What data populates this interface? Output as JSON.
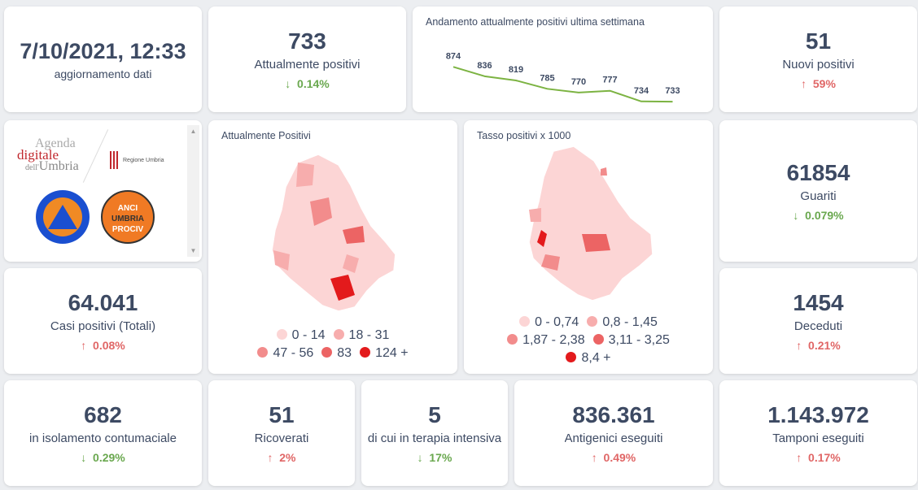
{
  "update": {
    "datetime": "7/10/2021, 12:33",
    "label": "aggiornamento dati"
  },
  "attualmente_positivi": {
    "value": "733",
    "label": "Attualmente positivi",
    "delta": "0.14%",
    "dir": "down"
  },
  "trend": {
    "title": "Andamento attualmente positivi ultima settimana",
    "values": [
      874,
      836,
      819,
      785,
      770,
      777,
      734,
      733
    ],
    "color": "#7cb342"
  },
  "nuovi_positivi": {
    "value": "51",
    "label": "Nuovi positivi",
    "delta": "59%",
    "dir": "up"
  },
  "logos": {
    "agenda": "Agenda digitale dell'Umbria",
    "regione": "Regione Umbria",
    "protezione": "Protezione Civile",
    "anci": "ANCI UMBRIA PROCIV"
  },
  "map1": {
    "title": "Attualmente Positivi",
    "legend": [
      {
        "label": "0 - 14",
        "color": "#fcd5d5"
      },
      {
        "label": "18 - 31",
        "color": "#f7adad"
      },
      {
        "label": "47 - 56",
        "color": "#f28c8c"
      },
      {
        "label": "83",
        "color": "#ec6464"
      },
      {
        "label": "124 +",
        "color": "#e31a1c"
      }
    ]
  },
  "map2": {
    "title": "Tasso positivi x 1000",
    "legend": [
      {
        "label": "0 - 0,74",
        "color": "#fcd5d5"
      },
      {
        "label": "0,8 - 1,45",
        "color": "#f7adad"
      },
      {
        "label": "1,87 - 2,38",
        "color": "#f28c8c"
      },
      {
        "label": "3,11 - 3,25",
        "color": "#ec6464"
      },
      {
        "label": "8,4 +",
        "color": "#e31a1c"
      }
    ]
  },
  "guariti": {
    "value": "61854",
    "label": "Guariti",
    "delta": "0.079%",
    "dir": "down"
  },
  "casi_totali": {
    "value": "64.041",
    "label": "Casi positivi (Totali)",
    "delta": "0.08%",
    "dir": "up"
  },
  "deceduti": {
    "value": "1454",
    "label": "Deceduti",
    "delta": "0.21%",
    "dir": "up"
  },
  "isolamento": {
    "value": "682",
    "label": "in isolamento contumaciale",
    "delta": "0.29%",
    "dir": "down"
  },
  "ricoverati": {
    "value": "51",
    "label": "Ricoverati",
    "delta": "2%",
    "dir": "up"
  },
  "terapia": {
    "value": "5",
    "label": "di cui in terapia intensiva",
    "delta": "17%",
    "dir": "down"
  },
  "antigenici": {
    "value": "836.361",
    "label": "Antigenici eseguiti",
    "delta": "0.49%",
    "dir": "up"
  },
  "tamponi": {
    "value": "1.143.972",
    "label": "Tamponi eseguiti",
    "delta": "0.17%",
    "dir": "up"
  },
  "arrows": {
    "up": "↑",
    "down": "↓"
  }
}
